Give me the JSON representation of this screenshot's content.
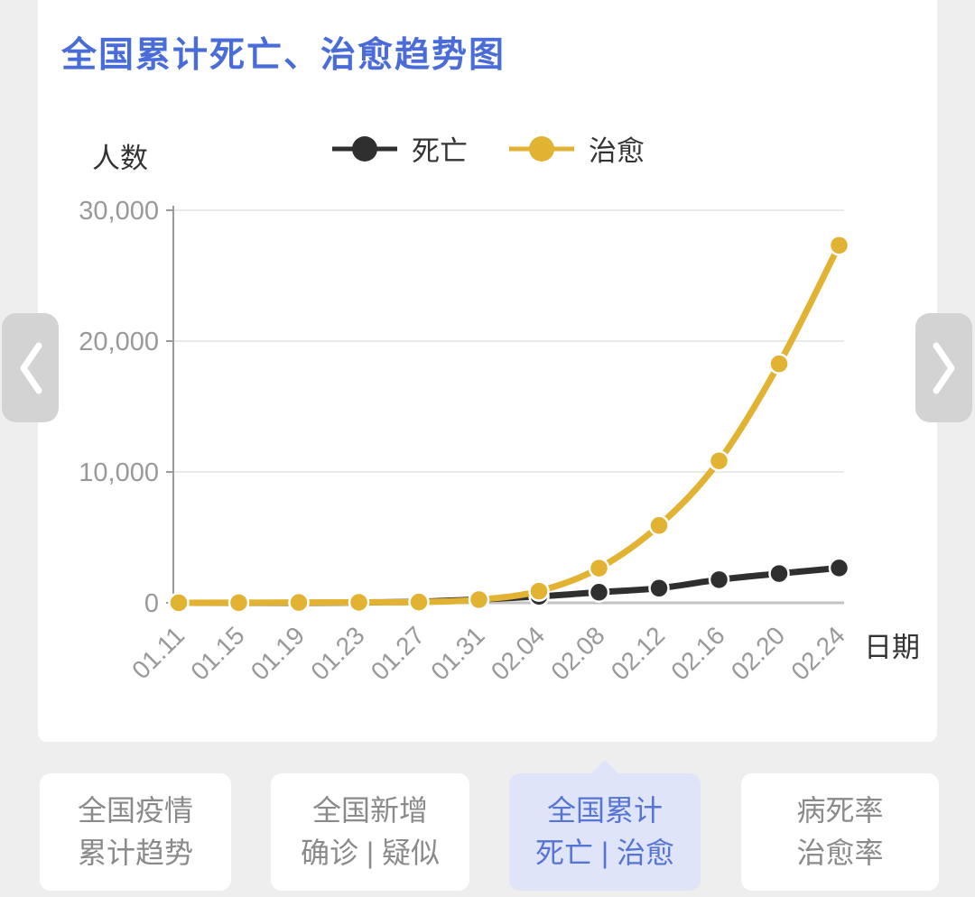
{
  "page": {
    "bg": "#eeeeee",
    "card_bg": "#ffffff"
  },
  "chart_data": {
    "type": "line",
    "title": "全国累计死亡、治愈趋势图",
    "ylabel": "人数",
    "xlabel": "日期",
    "categories": [
      "01.11",
      "01.15",
      "01.19",
      "01.23",
      "01.27",
      "01.31",
      "02.04",
      "02.08",
      "02.12",
      "02.16",
      "02.20",
      "02.24"
    ],
    "series": [
      {
        "name": "死亡",
        "color": "#2f2f2f",
        "values": [
          1,
          2,
          3,
          25,
          82,
          259,
          490,
          811,
          1117,
          1770,
          2236,
          2663
        ]
      },
      {
        "name": "治愈",
        "color": "#e2b232",
        "values": [
          2,
          12,
          25,
          38,
          60,
          243,
          892,
          2649,
          5911,
          10844,
          18264,
          27323
        ]
      }
    ],
    "ylim": [
      0,
      30000
    ],
    "yticks": [
      {
        "value": 0,
        "label": "0"
      },
      {
        "value": 10000,
        "label": "10,000"
      },
      {
        "value": 20000,
        "label": "20,000"
      },
      {
        "value": 30000,
        "label": "30,000"
      }
    ],
    "grid": true,
    "legend_position": "top",
    "x_tick_rotation": -45
  },
  "carousel": {
    "prev_icon": "chevron-left",
    "next_icon": "chevron-right"
  },
  "tabs": [
    {
      "lines": [
        "全国疫情",
        "累计趋势"
      ],
      "active": false
    },
    {
      "lines": [
        "全国新增",
        "确诊 | 疑似"
      ],
      "active": false
    },
    {
      "lines": [
        "全国累计",
        "死亡 | 治愈"
      ],
      "active": true
    },
    {
      "lines": [
        "病死率",
        "治愈率"
      ],
      "active": false
    }
  ],
  "colors": {
    "title_blue": "#4a6cd8",
    "active_tab_bg": "#dfe4f8",
    "active_tab_text": "#5674d4",
    "tab_text": "#8a8a8a",
    "axis_text": "#999999",
    "label_text": "#333333",
    "grid_line": "#e9e9e9",
    "zero_line": "#c3c3c3",
    "axis_line": "#9b9b9b",
    "nav_button_bg": "#d3d3d3",
    "nav_chevron": "#ffffff"
  }
}
